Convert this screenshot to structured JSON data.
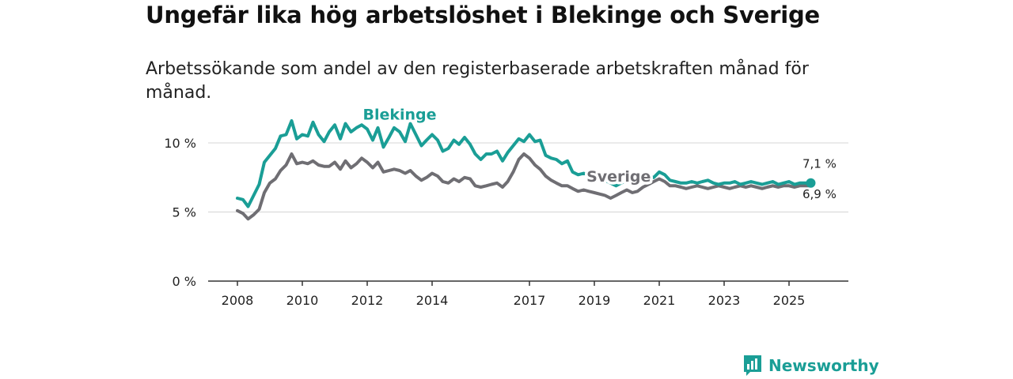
{
  "title": "Ungefär lika hög arbetslöshet i Blekinge och Sverige",
  "subtitle": "Arbetssökande som andel av den registerbaserade arbetskraften månad för månad.",
  "brand": "Newsworthy",
  "colors": {
    "blekinge": "#1a9e96",
    "sverige": "#6f6e73",
    "grid": "#d4d4d4",
    "axis": "#333333",
    "brand": "#1a9e96"
  },
  "chart_data": {
    "type": "line",
    "title": "Ungefär lika hög arbetslöshet i Blekinge och Sverige",
    "subtitle": "Arbetssökande som andel av den registerbaserade arbetskraften månad för månad.",
    "xlabel": "",
    "ylabel": "",
    "xlim": [
      2008.0,
      2026.0
    ],
    "ylim": [
      0,
      12
    ],
    "xticks": [
      {
        "value": 2008,
        "label": "2008"
      },
      {
        "value": 2010,
        "label": "2010"
      },
      {
        "value": 2012,
        "label": "2012"
      },
      {
        "value": 2014,
        "label": "2014"
      },
      {
        "value": 2017,
        "label": "2017"
      },
      {
        "value": 2019,
        "label": "2019"
      },
      {
        "value": 2021,
        "label": "2021"
      },
      {
        "value": 2023,
        "label": "2023"
      },
      {
        "value": 2025,
        "label": "2025"
      }
    ],
    "yticks": [
      {
        "value": 0,
        "label": "0 %"
      },
      {
        "value": 5,
        "label": "5 %"
      },
      {
        "value": 10,
        "label": "10 %"
      }
    ],
    "grid": true,
    "legend": "inline",
    "series": [
      {
        "name": "Blekinge",
        "color": "#1a9e96",
        "end_label": "7,1 %",
        "x": [
          2008.0,
          2008.17,
          2008.33,
          2008.5,
          2008.67,
          2008.83,
          2009.0,
          2009.17,
          2009.33,
          2009.5,
          2009.67,
          2009.83,
          2010.0,
          2010.17,
          2010.33,
          2010.5,
          2010.67,
          2010.83,
          2011.0,
          2011.17,
          2011.33,
          2011.5,
          2011.67,
          2011.83,
          2012.0,
          2012.17,
          2012.33,
          2012.5,
          2012.67,
          2012.83,
          2013.0,
          2013.17,
          2013.33,
          2013.5,
          2013.67,
          2013.83,
          2014.0,
          2014.17,
          2014.33,
          2014.5,
          2014.67,
          2014.83,
          2015.0,
          2015.17,
          2015.33,
          2015.5,
          2015.67,
          2015.83,
          2016.0,
          2016.17,
          2016.33,
          2016.5,
          2016.67,
          2016.83,
          2017.0,
          2017.17,
          2017.33,
          2017.5,
          2017.67,
          2017.83,
          2018.0,
          2018.17,
          2018.33,
          2018.5,
          2018.67,
          2018.83,
          2019.0,
          2019.17,
          2019.33,
          2019.5,
          2019.67,
          2019.83,
          2020.0,
          2020.17,
          2020.33,
          2020.5,
          2020.67,
          2020.83,
          2021.0,
          2021.17,
          2021.33,
          2021.5,
          2021.67,
          2021.83,
          2022.0,
          2022.17,
          2022.33,
          2022.5,
          2022.67,
          2022.83,
          2023.0,
          2023.17,
          2023.33,
          2023.5,
          2023.67,
          2023.83,
          2024.0,
          2024.17,
          2024.33,
          2024.5,
          2024.67,
          2024.83,
          2025.0,
          2025.17,
          2025.33,
          2025.5,
          2025.67
        ],
        "values": [
          6.0,
          5.9,
          5.4,
          6.2,
          7.0,
          8.6,
          9.1,
          9.6,
          10.5,
          10.6,
          11.6,
          10.3,
          10.6,
          10.5,
          11.5,
          10.6,
          10.1,
          10.8,
          11.3,
          10.3,
          11.4,
          10.8,
          11.1,
          11.3,
          11.0,
          10.2,
          11.1,
          9.7,
          10.4,
          11.1,
          10.8,
          10.1,
          11.4,
          10.6,
          9.8,
          10.2,
          10.6,
          10.2,
          9.4,
          9.6,
          10.2,
          9.9,
          10.4,
          9.9,
          9.2,
          8.8,
          9.2,
          9.2,
          9.4,
          8.7,
          9.3,
          9.8,
          10.3,
          10.1,
          10.6,
          10.1,
          10.2,
          9.1,
          8.9,
          8.8,
          8.5,
          8.7,
          7.9,
          7.7,
          7.8,
          7.7,
          7.6,
          7.5,
          7.3,
          7.1,
          6.9,
          7.1,
          7.3,
          7.0,
          7.2,
          7.5,
          7.6,
          7.5,
          7.9,
          7.7,
          7.3,
          7.2,
          7.1,
          7.1,
          7.2,
          7.1,
          7.2,
          7.3,
          7.1,
          7.0,
          7.1,
          7.1,
          7.2,
          7.0,
          7.1,
          7.2,
          7.1,
          7.0,
          7.1,
          7.2,
          7.0,
          7.1,
          7.2,
          7.0,
          7.1,
          7.1,
          7.1
        ]
      },
      {
        "name": "Sverige",
        "color": "#6f6e73",
        "end_label": "6,9 %",
        "x": [
          2008.0,
          2008.17,
          2008.33,
          2008.5,
          2008.67,
          2008.83,
          2009.0,
          2009.17,
          2009.33,
          2009.5,
          2009.67,
          2009.83,
          2010.0,
          2010.17,
          2010.33,
          2010.5,
          2010.67,
          2010.83,
          2011.0,
          2011.17,
          2011.33,
          2011.5,
          2011.67,
          2011.83,
          2012.0,
          2012.17,
          2012.33,
          2012.5,
          2012.67,
          2012.83,
          2013.0,
          2013.17,
          2013.33,
          2013.5,
          2013.67,
          2013.83,
          2014.0,
          2014.17,
          2014.33,
          2014.5,
          2014.67,
          2014.83,
          2015.0,
          2015.17,
          2015.33,
          2015.5,
          2015.67,
          2015.83,
          2016.0,
          2016.17,
          2016.33,
          2016.5,
          2016.67,
          2016.83,
          2017.0,
          2017.17,
          2017.33,
          2017.5,
          2017.67,
          2017.83,
          2018.0,
          2018.17,
          2018.33,
          2018.5,
          2018.67,
          2018.83,
          2019.0,
          2019.17,
          2019.33,
          2019.5,
          2019.67,
          2019.83,
          2020.0,
          2020.17,
          2020.33,
          2020.5,
          2020.67,
          2020.83,
          2021.0,
          2021.17,
          2021.33,
          2021.5,
          2021.67,
          2021.83,
          2022.0,
          2022.17,
          2022.33,
          2022.5,
          2022.67,
          2022.83,
          2023.0,
          2023.17,
          2023.33,
          2023.5,
          2023.67,
          2023.83,
          2024.0,
          2024.17,
          2024.33,
          2024.5,
          2024.67,
          2024.83,
          2025.0,
          2025.17,
          2025.33,
          2025.5,
          2025.67
        ],
        "values": [
          5.1,
          4.9,
          4.5,
          4.8,
          5.2,
          6.4,
          7.1,
          7.4,
          8.0,
          8.4,
          9.2,
          8.5,
          8.6,
          8.5,
          8.7,
          8.4,
          8.3,
          8.3,
          8.6,
          8.1,
          8.7,
          8.2,
          8.5,
          8.9,
          8.6,
          8.2,
          8.6,
          7.9,
          8.0,
          8.1,
          8.0,
          7.8,
          8.0,
          7.6,
          7.3,
          7.5,
          7.8,
          7.6,
          7.2,
          7.1,
          7.4,
          7.2,
          7.5,
          7.4,
          6.9,
          6.8,
          6.9,
          7.0,
          7.1,
          6.8,
          7.2,
          7.9,
          8.8,
          9.2,
          8.9,
          8.4,
          8.1,
          7.6,
          7.3,
          7.1,
          6.9,
          6.9,
          6.7,
          6.5,
          6.6,
          6.5,
          6.4,
          6.3,
          6.2,
          6.0,
          6.2,
          6.4,
          6.6,
          6.4,
          6.5,
          6.8,
          7.0,
          7.2,
          7.4,
          7.2,
          6.9,
          6.9,
          6.8,
          6.7,
          6.8,
          6.9,
          6.8,
          6.7,
          6.8,
          6.9,
          6.8,
          6.7,
          6.8,
          6.9,
          6.8,
          6.9,
          6.8,
          6.7,
          6.8,
          6.9,
          6.8,
          6.9,
          6.9,
          6.8,
          6.9,
          6.9,
          6.9
        ]
      }
    ],
    "inline_labels": [
      {
        "series": "Blekinge",
        "text": "Blekinge"
      },
      {
        "series": "Sverige",
        "text": "Sverige"
      }
    ]
  }
}
